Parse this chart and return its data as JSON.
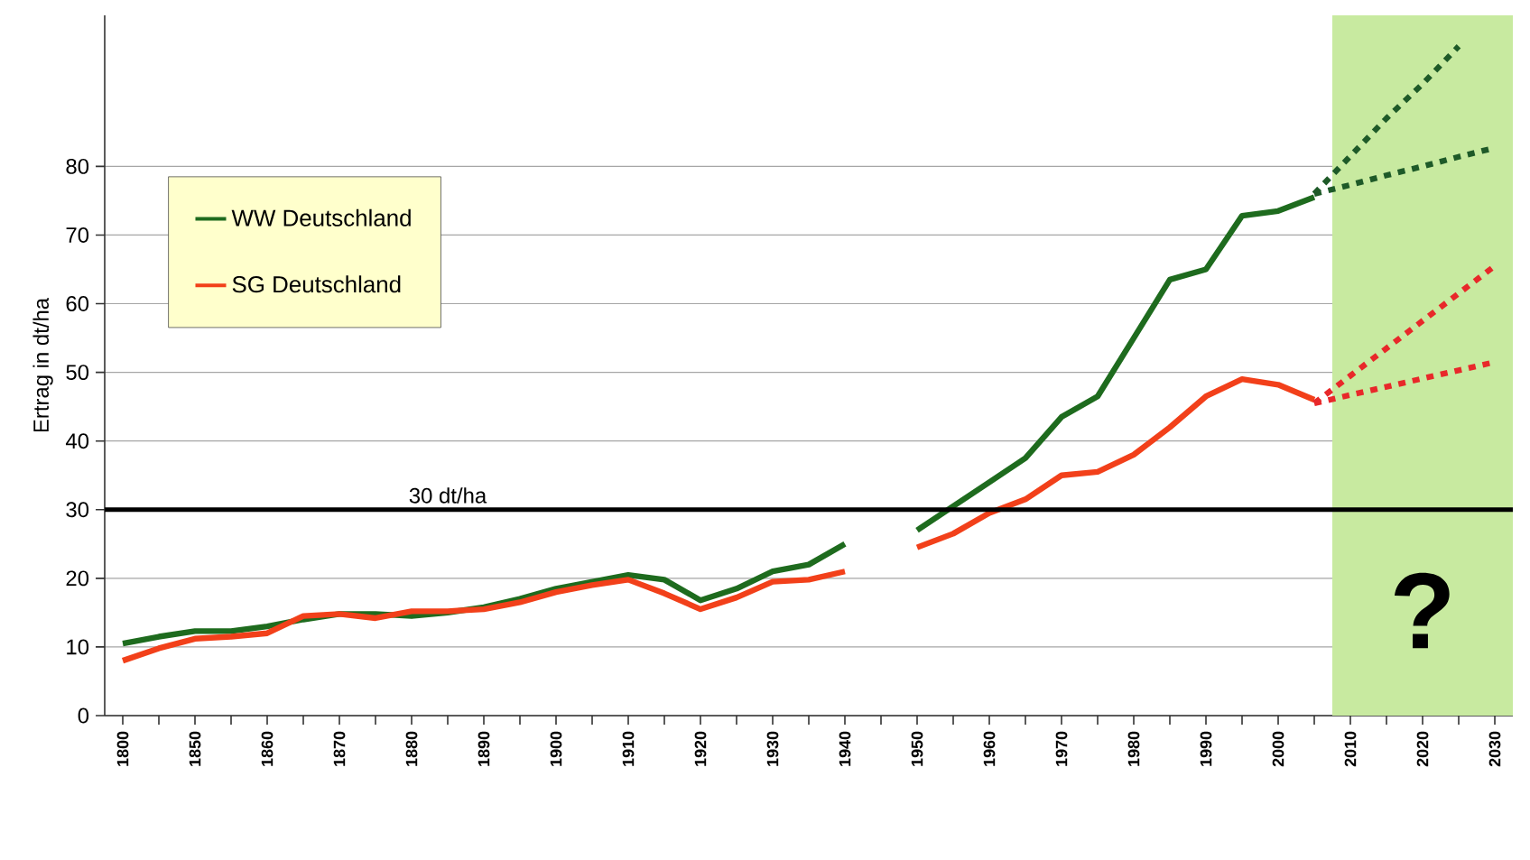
{
  "chart_data": {
    "type": "line",
    "ylabel": "Ertrag in dt/ha",
    "categories": [
      "1800",
      null,
      "1850",
      null,
      "1860",
      null,
      "1870",
      null,
      "1880",
      null,
      "1890",
      null,
      "1900",
      null,
      "1910",
      null,
      "1920",
      null,
      "1930",
      null,
      "1940",
      null,
      "1950",
      null,
      "1960",
      null,
      "1970",
      null,
      "1980",
      null,
      "1990",
      null,
      "2000",
      null,
      "2010",
      null,
      "2020",
      null,
      "2030"
    ],
    "series": [
      {
        "name": "WW Deutschland",
        "color": "#1e6b1e",
        "values": [
          10.5,
          11.5,
          12.3,
          12.3,
          13,
          14,
          14.8,
          14.8,
          14.5,
          15,
          15.8,
          17,
          18.5,
          19.5,
          20.5,
          19.8,
          16.8,
          18.5,
          21,
          22,
          25,
          null,
          27,
          30.5,
          34,
          37.5,
          43.5,
          46.5,
          55,
          63.5,
          65,
          72.8,
          73.5,
          75.5,
          null,
          null,
          null,
          null,
          null
        ]
      },
      {
        "name": "SG Deutschland",
        "color": "#f2401a",
        "values": [
          8,
          9.8,
          11.2,
          11.5,
          12,
          14.5,
          14.8,
          14.2,
          15.2,
          15.2,
          15.5,
          16.5,
          18,
          19,
          19.8,
          17.8,
          15.5,
          17.2,
          19.5,
          19.8,
          21,
          null,
          24.5,
          26.5,
          29.5,
          31.5,
          35,
          35.5,
          38,
          42,
          46.5,
          49,
          48.2,
          46,
          null,
          null,
          null,
          null,
          null
        ]
      },
      {
        "color": "#1e5a28",
        "line_style": "dotted",
        "values": [
          null,
          null,
          null,
          null,
          null,
          null,
          null,
          null,
          null,
          null,
          null,
          null,
          null,
          null,
          null,
          null,
          null,
          null,
          null,
          null,
          null,
          null,
          null,
          null,
          null,
          null,
          null,
          null,
          null,
          null,
          null,
          null,
          null,
          76,
          81.5,
          87,
          92,
          97.5,
          null
        ]
      },
      {
        "color": "#1e5a28",
        "line_style": "dotted",
        "values": [
          null,
          null,
          null,
          null,
          null,
          null,
          null,
          null,
          null,
          null,
          null,
          null,
          null,
          null,
          null,
          null,
          null,
          null,
          null,
          null,
          null,
          null,
          null,
          null,
          null,
          null,
          null,
          null,
          null,
          null,
          null,
          null,
          null,
          76,
          77.3,
          78.7,
          80,
          81.4,
          82.7
        ]
      },
      {
        "color": "#e8282a",
        "line_style": "dotted",
        "values": [
          null,
          null,
          null,
          null,
          null,
          null,
          null,
          null,
          null,
          null,
          null,
          null,
          null,
          null,
          null,
          null,
          null,
          null,
          null,
          null,
          null,
          null,
          null,
          null,
          null,
          null,
          null,
          null,
          null,
          null,
          null,
          null,
          null,
          45.5,
          49.5,
          53.5,
          57.5,
          61.5,
          65.5
        ]
      },
      {
        "color": "#e8282a",
        "line_style": "dotted",
        "values": [
          null,
          null,
          null,
          null,
          null,
          null,
          null,
          null,
          null,
          null,
          null,
          null,
          null,
          null,
          null,
          null,
          null,
          null,
          null,
          null,
          null,
          null,
          null,
          null,
          null,
          null,
          null,
          null,
          null,
          null,
          null,
          null,
          null,
          45.5,
          46.7,
          47.9,
          49.1,
          50.3,
          51.5
        ]
      }
    ],
    "ylim": [
      0,
      102
    ],
    "yticks": [
      0,
      10,
      20,
      30,
      40,
      50,
      60,
      70,
      80
    ],
    "grid": "y",
    "legend": "top left",
    "ref_lines": [
      {
        "axis": "y",
        "value": 30,
        "label": "30 dt/ha",
        "color": "#000000"
      }
    ],
    "bands": [
      {
        "axis": "x",
        "from": "2010",
        "to": "2030",
        "color": "#c8eaa0"
      }
    ],
    "annotations": [
      "?"
    ]
  }
}
